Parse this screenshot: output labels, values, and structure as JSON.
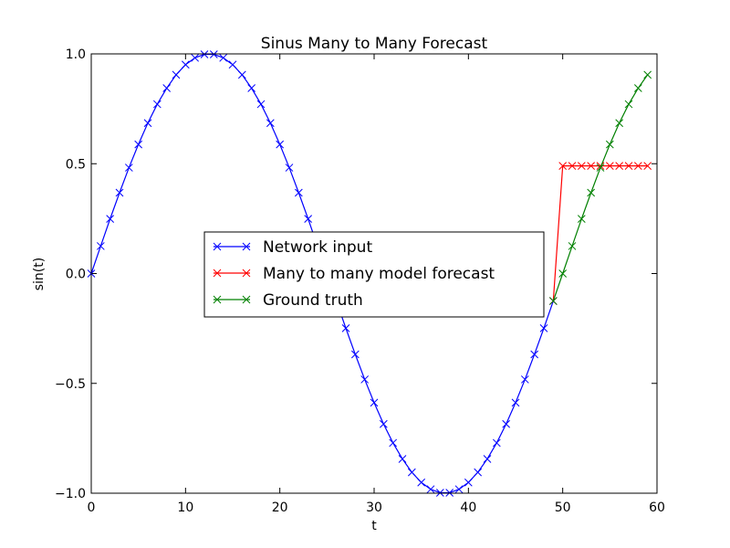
{
  "chart_data": {
    "type": "line",
    "title": "Sinus Many to Many Forecast",
    "xlabel": "t",
    "ylabel": "sin(t)",
    "xlim": [
      0,
      60
    ],
    "ylim": [
      -1.0,
      1.0
    ],
    "xticks": [
      0,
      10,
      20,
      30,
      40,
      50,
      60
    ],
    "xtick_labels": [
      "0",
      "10",
      "20",
      "30",
      "40",
      "50",
      "60"
    ],
    "yticks": [
      -1.0,
      -0.5,
      0.0,
      0.5,
      1.0
    ],
    "ytick_labels": [
      "−1.0",
      "−0.5",
      "0.0",
      "0.5",
      "1.0"
    ],
    "grid": false,
    "legend_position": "center",
    "series": [
      {
        "name": "Network input",
        "color": "#0000ff",
        "marker": "x",
        "x": [
          0,
          1,
          2,
          3,
          4,
          5,
          6,
          7,
          8,
          9,
          10,
          11,
          12,
          13,
          14,
          15,
          16,
          17,
          18,
          19,
          20,
          21,
          22,
          23,
          24,
          25,
          26,
          27,
          28,
          29,
          30,
          31,
          32,
          33,
          34,
          35,
          36,
          37,
          38,
          39,
          40,
          41,
          42,
          43,
          44,
          45,
          46,
          47,
          48,
          49
        ],
        "y": [
          0.0,
          0.125,
          0.249,
          0.368,
          0.482,
          0.588,
          0.685,
          0.771,
          0.844,
          0.905,
          0.951,
          0.982,
          0.998,
          0.998,
          0.982,
          0.951,
          0.905,
          0.844,
          0.771,
          0.685,
          0.588,
          0.482,
          0.368,
          0.249,
          0.125,
          0.0,
          -0.125,
          -0.249,
          -0.368,
          -0.482,
          -0.588,
          -0.685,
          -0.771,
          -0.844,
          -0.905,
          -0.951,
          -0.982,
          -0.998,
          -0.998,
          -0.982,
          -0.951,
          -0.905,
          -0.844,
          -0.771,
          -0.685,
          -0.588,
          -0.482,
          -0.368,
          -0.249,
          -0.125
        ]
      },
      {
        "name": "Many to many model forecast",
        "color": "#ff0000",
        "marker": "x",
        "x": [
          49,
          50,
          51,
          52,
          53,
          54,
          55,
          56,
          57,
          58,
          59
        ],
        "y": [
          -0.125,
          0.49,
          0.49,
          0.49,
          0.49,
          0.49,
          0.49,
          0.49,
          0.49,
          0.49,
          0.49
        ]
      },
      {
        "name": "Ground truth",
        "color": "#008000",
        "marker": "x",
        "x": [
          49,
          50,
          51,
          52,
          53,
          54,
          55,
          56,
          57,
          58,
          59
        ],
        "y": [
          -0.125,
          0.0,
          0.125,
          0.249,
          0.368,
          0.482,
          0.588,
          0.685,
          0.771,
          0.844,
          0.905
        ]
      }
    ]
  }
}
